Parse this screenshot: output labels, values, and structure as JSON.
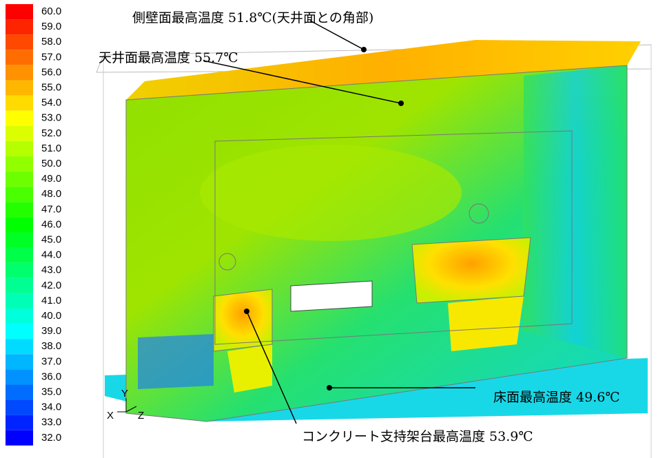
{
  "colorbar": {
    "ticks": [
      {
        "value": 60,
        "label": "60.0"
      },
      {
        "value": 59,
        "label": "59.0"
      },
      {
        "value": 58,
        "label": "58.0"
      },
      {
        "value": 57,
        "label": "57.0"
      },
      {
        "value": 56,
        "label": "56.0"
      },
      {
        "value": 55,
        "label": "55.0"
      },
      {
        "value": 54,
        "label": "54.0"
      },
      {
        "value": 53,
        "label": "53.0"
      },
      {
        "value": 52,
        "label": "52.0"
      },
      {
        "value": 51,
        "label": "51.0"
      },
      {
        "value": 50,
        "label": "50.0"
      },
      {
        "value": 49,
        "label": "49.0"
      },
      {
        "value": 48,
        "label": "48.0"
      },
      {
        "value": 47,
        "label": "47.0"
      },
      {
        "value": 46,
        "label": "46.0"
      },
      {
        "value": 45,
        "label": "45.0"
      },
      {
        "value": 44,
        "label": "44.0"
      },
      {
        "value": 43,
        "label": "43.0"
      },
      {
        "value": 42,
        "label": "42.0"
      },
      {
        "value": 41,
        "label": "41.0"
      },
      {
        "value": 40,
        "label": "40.0"
      },
      {
        "value": 39,
        "label": "39.0"
      },
      {
        "value": 38,
        "label": "38.0"
      },
      {
        "value": 37,
        "label": "37.0"
      },
      {
        "value": 36,
        "label": "36.0"
      },
      {
        "value": 35,
        "label": "35.0"
      },
      {
        "value": 34,
        "label": "34.0"
      },
      {
        "value": 33,
        "label": "33.0"
      },
      {
        "value": 32,
        "label": "32.0"
      }
    ]
  },
  "annotations": [
    "側壁面最高温度 51.8℃(天井面との角部)",
    "天井面最高温度 55.7℃",
    "床面最高温度 49.6℃",
    "コンクリート支持架台最高温度 53.9℃"
  ],
  "axes": {
    "y": "Y",
    "x": "X",
    "z": "Z"
  }
}
